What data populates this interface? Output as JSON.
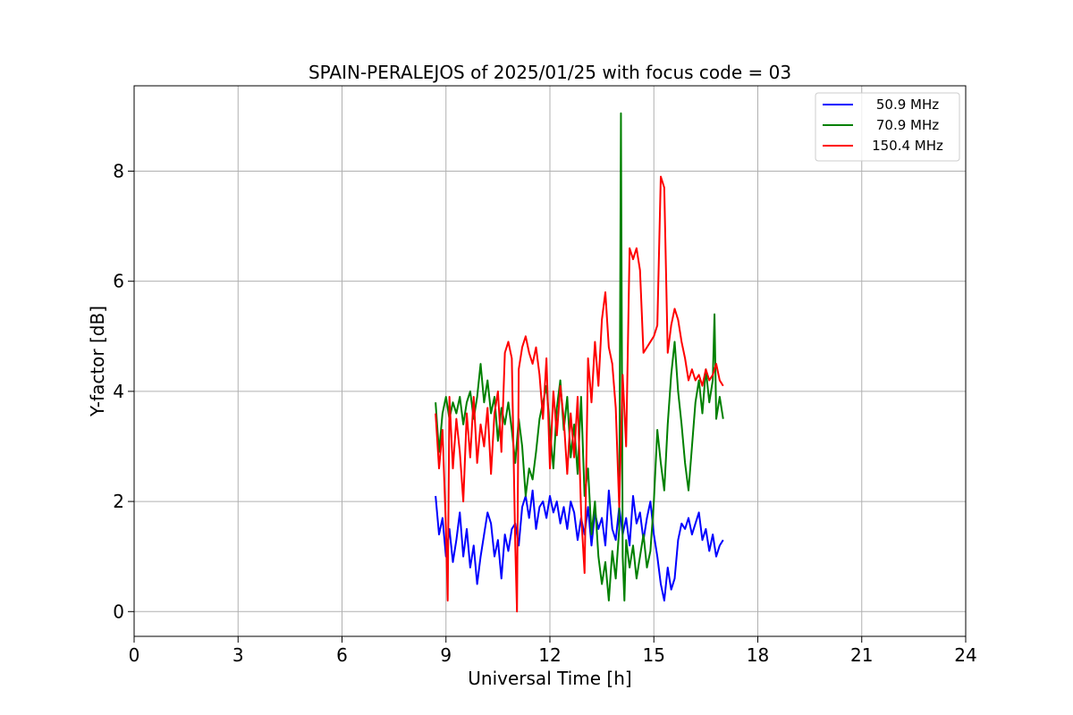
{
  "chart_data": {
    "type": "line",
    "title": "SPAIN-PERALEJOS of 2025/01/25 with focus code = 03",
    "xlabel": "Universal Time [h]",
    "ylabel": "Y-factor [dB]",
    "xlim": [
      0,
      24
    ],
    "ylim": [
      -0.45,
      9.55
    ],
    "xticks": [
      0,
      3,
      6,
      9,
      12,
      15,
      18,
      21,
      24
    ],
    "yticks": [
      0,
      2,
      4,
      6,
      8
    ],
    "grid": true,
    "legend_position": "top-right",
    "series": [
      {
        "name": "50.9 MHz",
        "color": "#0000ff",
        "x": [
          8.7,
          8.8,
          8.9,
          9.0,
          9.1,
          9.2,
          9.3,
          9.4,
          9.5,
          9.6,
          9.7,
          9.8,
          9.9,
          10.0,
          10.1,
          10.2,
          10.3,
          10.4,
          10.5,
          10.6,
          10.7,
          10.8,
          10.9,
          11.0,
          11.1,
          11.2,
          11.3,
          11.4,
          11.5,
          11.6,
          11.7,
          11.8,
          11.9,
          12.0,
          12.1,
          12.2,
          12.3,
          12.4,
          12.5,
          12.6,
          12.7,
          12.8,
          12.9,
          13.0,
          13.1,
          13.2,
          13.3,
          13.4,
          13.5,
          13.6,
          13.7,
          13.8,
          13.9,
          14.0,
          14.1,
          14.2,
          14.3,
          14.4,
          14.5,
          14.6,
          14.7,
          14.8,
          14.9,
          15.0,
          15.1,
          15.2,
          15.3,
          15.4,
          15.5,
          15.6,
          15.7,
          15.8,
          15.9,
          16.0,
          16.1,
          16.2,
          16.3,
          16.4,
          16.5,
          16.6,
          16.7,
          16.8,
          16.9,
          17.0
        ],
        "y": [
          2.1,
          1.4,
          1.7,
          1.0,
          1.5,
          0.9,
          1.3,
          1.8,
          1.0,
          1.5,
          0.8,
          1.2,
          0.5,
          1.0,
          1.4,
          1.8,
          1.6,
          1.0,
          1.3,
          0.6,
          1.4,
          1.1,
          1.5,
          1.6,
          1.2,
          1.9,
          2.1,
          1.7,
          2.2,
          1.5,
          1.9,
          2.0,
          1.7,
          2.1,
          1.8,
          2.0,
          1.6,
          1.9,
          1.5,
          2.0,
          1.8,
          1.3,
          1.7,
          1.4,
          1.9,
          1.2,
          1.8,
          1.5,
          1.7,
          1.2,
          2.2,
          1.5,
          1.3,
          1.9,
          1.4,
          1.7,
          1.2,
          2.1,
          1.6,
          1.8,
          1.3,
          1.7,
          2.0,
          1.4,
          1.0,
          0.5,
          0.2,
          0.8,
          0.4,
          0.6,
          1.3,
          1.6,
          1.5,
          1.7,
          1.4,
          1.6,
          1.8,
          1.3,
          1.5,
          1.1,
          1.4,
          1.0,
          1.2,
          1.3
        ]
      },
      {
        "name": "70.9 MHz",
        "color": "#008000",
        "x": [
          8.7,
          8.8,
          8.9,
          9.0,
          9.1,
          9.2,
          9.3,
          9.4,
          9.5,
          9.6,
          9.7,
          9.8,
          9.9,
          10.0,
          10.1,
          10.2,
          10.3,
          10.4,
          10.5,
          10.6,
          10.7,
          10.8,
          10.9,
          11.0,
          11.1,
          11.2,
          11.3,
          11.4,
          11.5,
          11.6,
          11.7,
          11.8,
          11.9,
          12.0,
          12.1,
          12.2,
          12.3,
          12.4,
          12.5,
          12.6,
          12.7,
          12.8,
          12.9,
          13.0,
          13.1,
          13.2,
          13.3,
          13.4,
          13.5,
          13.6,
          13.7,
          13.8,
          13.9,
          14.0,
          14.05,
          14.1,
          14.15,
          14.2,
          14.3,
          14.4,
          14.5,
          14.6,
          14.7,
          14.8,
          14.9,
          15.0,
          15.1,
          15.2,
          15.3,
          15.4,
          15.5,
          15.6,
          15.7,
          15.8,
          15.9,
          16.0,
          16.1,
          16.2,
          16.3,
          16.4,
          16.5,
          16.6,
          16.7,
          16.75,
          16.8,
          16.9,
          17.0
        ],
        "y": [
          3.8,
          2.9,
          3.6,
          3.9,
          3.5,
          3.8,
          3.6,
          3.9,
          3.4,
          3.8,
          4.0,
          3.5,
          3.9,
          4.5,
          3.8,
          4.2,
          3.6,
          3.9,
          3.1,
          3.7,
          3.4,
          3.8,
          3.3,
          2.7,
          3.5,
          3.0,
          2.1,
          2.6,
          2.4,
          2.9,
          3.5,
          3.8,
          4.1,
          3.3,
          2.6,
          3.7,
          4.2,
          3.3,
          3.9,
          2.8,
          3.4,
          2.5,
          3.9,
          2.1,
          2.6,
          1.4,
          2.0,
          1.0,
          0.5,
          0.9,
          0.2,
          1.1,
          0.6,
          1.5,
          9.05,
          1.0,
          0.2,
          1.3,
          0.8,
          1.2,
          0.6,
          1.0,
          1.4,
          0.8,
          1.1,
          2.0,
          3.3,
          2.7,
          2.2,
          3.4,
          4.3,
          4.9,
          4.0,
          3.4,
          2.7,
          2.2,
          3.0,
          3.8,
          4.2,
          3.6,
          4.4,
          3.8,
          4.2,
          5.4,
          3.5,
          3.9,
          3.5
        ]
      },
      {
        "name": "150.4 MHz",
        "color": "#ff0000",
        "x": [
          8.7,
          8.8,
          8.9,
          9.0,
          9.05,
          9.1,
          9.2,
          9.3,
          9.4,
          9.5,
          9.6,
          9.7,
          9.8,
          9.9,
          10.0,
          10.1,
          10.2,
          10.3,
          10.4,
          10.5,
          10.6,
          10.7,
          10.8,
          10.9,
          11.0,
          11.05,
          11.1,
          11.2,
          11.3,
          11.4,
          11.5,
          11.6,
          11.7,
          11.8,
          11.9,
          12.0,
          12.1,
          12.2,
          12.3,
          12.4,
          12.5,
          12.6,
          12.7,
          12.8,
          12.9,
          13.0,
          13.1,
          13.2,
          13.3,
          13.4,
          13.5,
          13.6,
          13.7,
          13.8,
          13.9,
          14.0,
          14.1,
          14.2,
          14.3,
          14.4,
          14.5,
          14.6,
          14.7,
          14.8,
          14.9,
          15.0,
          15.1,
          15.2,
          15.3,
          15.4,
          15.5,
          15.6,
          15.7,
          15.8,
          15.9,
          16.0,
          16.1,
          16.2,
          16.3,
          16.4,
          16.5,
          16.6,
          16.7,
          16.8,
          16.9,
          17.0
        ],
        "y": [
          3.6,
          2.6,
          3.3,
          1.5,
          0.2,
          3.9,
          2.6,
          3.5,
          2.9,
          2.0,
          3.6,
          2.8,
          3.9,
          2.7,
          3.4,
          3.0,
          3.7,
          2.5,
          3.6,
          4.0,
          2.9,
          4.7,
          4.9,
          4.6,
          1.2,
          0.0,
          4.4,
          4.8,
          5.0,
          4.7,
          4.5,
          4.8,
          4.3,
          3.5,
          4.6,
          2.6,
          4.0,
          3.2,
          4.1,
          3.5,
          2.5,
          3.6,
          2.8,
          3.9,
          1.8,
          0.7,
          4.6,
          3.8,
          4.9,
          4.1,
          5.3,
          5.8,
          4.8,
          4.5,
          3.7,
          1.9,
          4.3,
          3.0,
          6.6,
          6.4,
          6.6,
          6.2,
          4.7,
          4.8,
          4.9,
          5.0,
          5.2,
          7.9,
          7.7,
          4.7,
          5.2,
          5.5,
          5.3,
          4.9,
          4.6,
          4.2,
          4.4,
          4.2,
          4.3,
          4.1,
          4.4,
          4.2,
          4.3,
          4.5,
          4.2,
          4.1
        ]
      }
    ]
  }
}
